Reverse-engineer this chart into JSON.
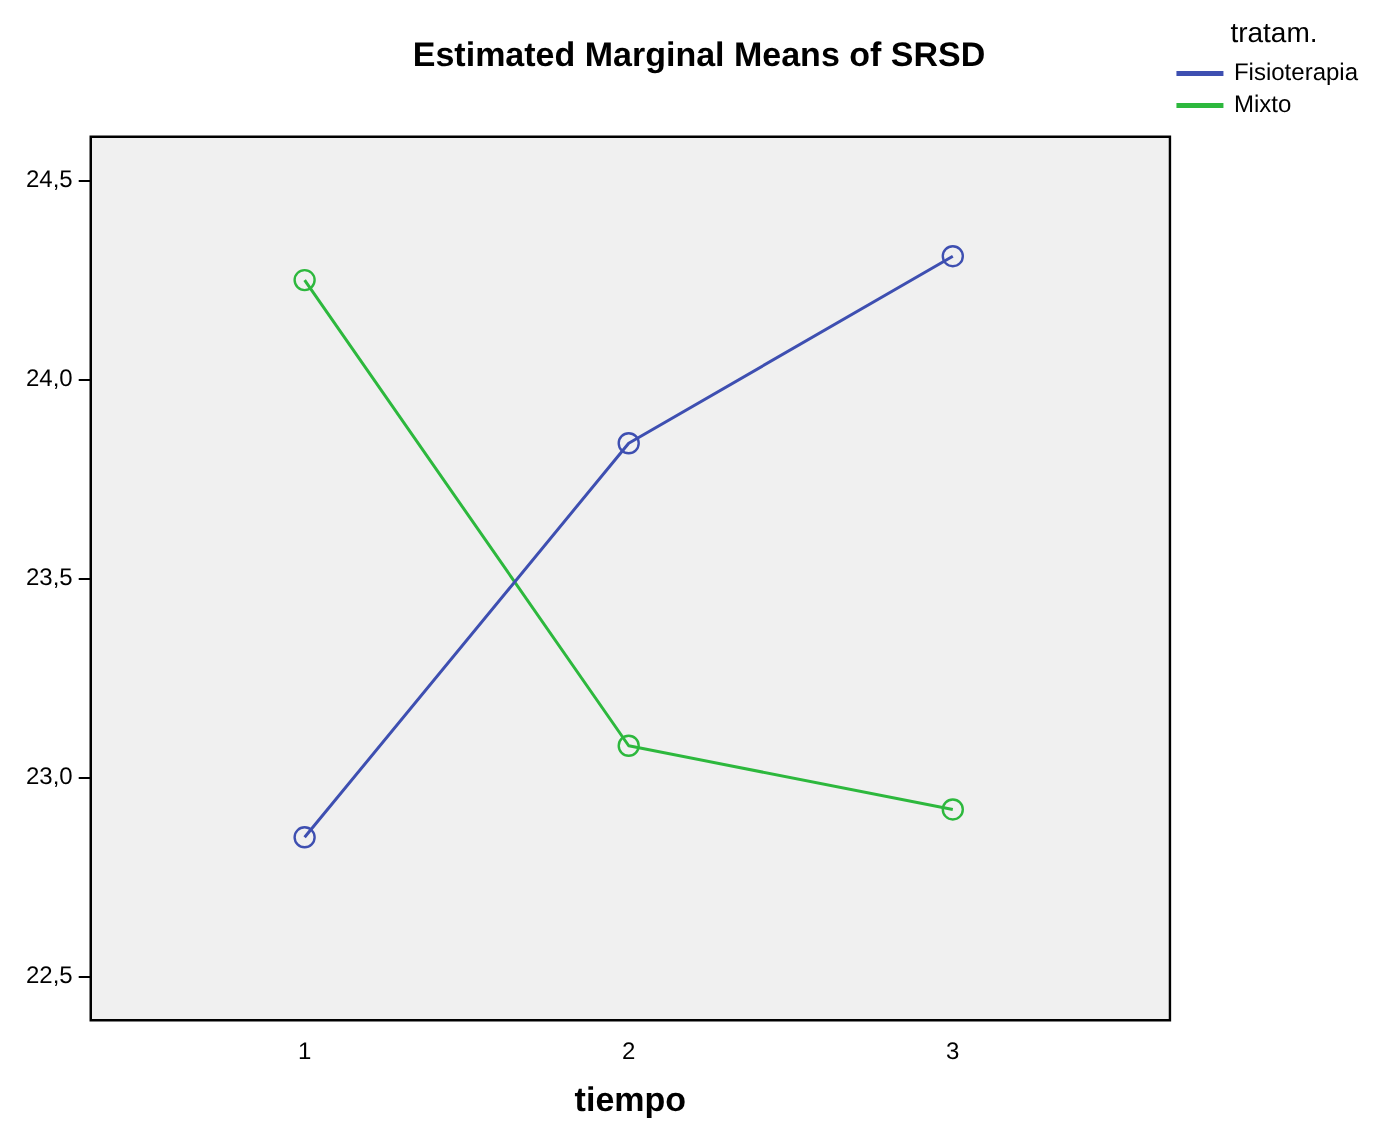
{
  "chart_data": {
    "type": "line",
    "title": "Estimated Marginal Means of SRSD",
    "xlabel": "tiempo",
    "legend_title": "tratam.",
    "x": [
      1,
      2,
      3
    ],
    "xlim": [
      0.34,
      3.67
    ],
    "xticks": [
      1,
      2,
      3
    ],
    "ylim": [
      22.39,
      24.61
    ],
    "yticks": [
      {
        "value": 22.5,
        "label": "22,5"
      },
      {
        "value": 23,
        "label": "23,0"
      },
      {
        "value": 23.5,
        "label": "23,5"
      },
      {
        "value": 24,
        "label": "24,0"
      },
      {
        "value": 24.5,
        "label": "24,5"
      }
    ],
    "series": [
      {
        "name": "Fisioterapia",
        "color": "#3e4fb1",
        "values": [
          22.85,
          23.84,
          24.31
        ]
      },
      {
        "name": "Mixto",
        "color": "#2db83d",
        "values": [
          24.25,
          23.08,
          22.92
        ]
      }
    ],
    "marker": "circle",
    "line_style": "solid",
    "grid": false,
    "legend": "top right"
  }
}
